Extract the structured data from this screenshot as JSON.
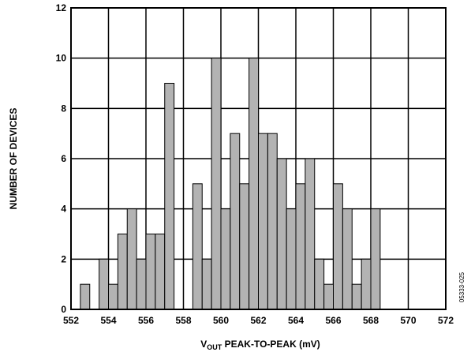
{
  "chart_data": {
    "type": "bar",
    "xlabel_main": "V",
    "xlabel_sub": "OUT",
    "xlabel_rest": " PEAK-TO-PEAK (mV)",
    "ylabel": "NUMBER OF DEVICES",
    "xlim": [
      552,
      572
    ],
    "ylim": [
      0,
      12
    ],
    "x_ticks": [
      "552",
      "554",
      "556",
      "558",
      "560",
      "562",
      "564",
      "566",
      "568",
      "570",
      "572"
    ],
    "y_ticks": [
      "0",
      "2",
      "4",
      "6",
      "8",
      "10",
      "12"
    ],
    "bin_width": 0.5,
    "bars": [
      {
        "x": 552.5,
        "value": 1
      },
      {
        "x": 553.5,
        "value": 2
      },
      {
        "x": 554.0,
        "value": 1
      },
      {
        "x": 554.5,
        "value": 3
      },
      {
        "x": 555.0,
        "value": 4
      },
      {
        "x": 555.5,
        "value": 2
      },
      {
        "x": 556.0,
        "value": 3
      },
      {
        "x": 556.5,
        "value": 3
      },
      {
        "x": 557.0,
        "value": 9
      },
      {
        "x": 558.5,
        "value": 5
      },
      {
        "x": 559.0,
        "value": 2
      },
      {
        "x": 559.5,
        "value": 10
      },
      {
        "x": 560.0,
        "value": 4
      },
      {
        "x": 560.5,
        "value": 7
      },
      {
        "x": 561.0,
        "value": 5
      },
      {
        "x": 561.5,
        "value": 10
      },
      {
        "x": 562.0,
        "value": 7
      },
      {
        "x": 562.5,
        "value": 7
      },
      {
        "x": 563.0,
        "value": 6
      },
      {
        "x": 563.5,
        "value": 4
      },
      {
        "x": 564.0,
        "value": 5
      },
      {
        "x": 564.5,
        "value": 6
      },
      {
        "x": 565.0,
        "value": 2
      },
      {
        "x": 565.5,
        "value": 1
      },
      {
        "x": 566.0,
        "value": 5
      },
      {
        "x": 566.5,
        "value": 4
      },
      {
        "x": 567.0,
        "value": 1
      },
      {
        "x": 567.5,
        "value": 2
      },
      {
        "x": 568.0,
        "value": 4
      }
    ],
    "grid": true,
    "bar_color": "#b3b3b3",
    "watermark": "05333-025"
  }
}
